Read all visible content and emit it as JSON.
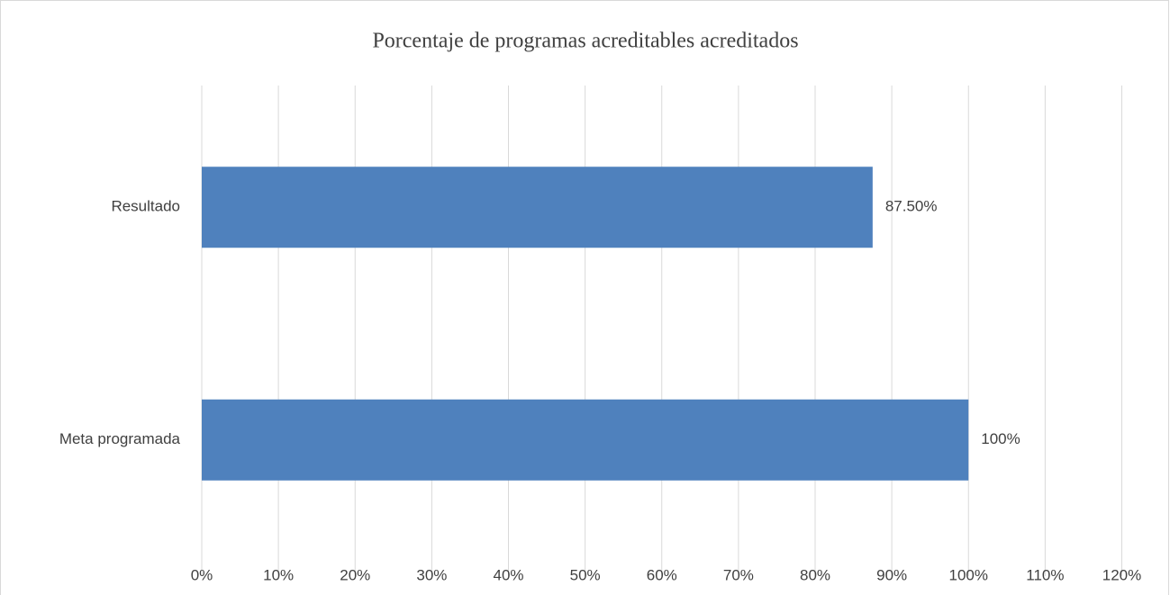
{
  "chart_data": {
    "type": "hbar",
    "title": "Porcentaje de programas acreditables acreditados",
    "categories": [
      "Resultado",
      "Meta programada"
    ],
    "values": [
      87.5,
      100
    ],
    "value_labels": [
      "87.50%",
      "100%"
    ],
    "color": "#4f81bd",
    "xlim": [
      0,
      120
    ],
    "xticks": [
      {
        "value": 0,
        "label": "0%"
      },
      {
        "value": 10,
        "label": "10%"
      },
      {
        "value": 20,
        "label": "20%"
      },
      {
        "value": 30,
        "label": "30%"
      },
      {
        "value": 40,
        "label": "40%"
      },
      {
        "value": 50,
        "label": "50%"
      },
      {
        "value": 60,
        "label": "60%"
      },
      {
        "value": 70,
        "label": "70%"
      },
      {
        "value": 80,
        "label": "80%"
      },
      {
        "value": 90,
        "label": "90%"
      },
      {
        "value": 100,
        "label": "100%"
      },
      {
        "value": 110,
        "label": "110%"
      },
      {
        "value": 120,
        "label": "120%"
      }
    ],
    "grid": true
  }
}
